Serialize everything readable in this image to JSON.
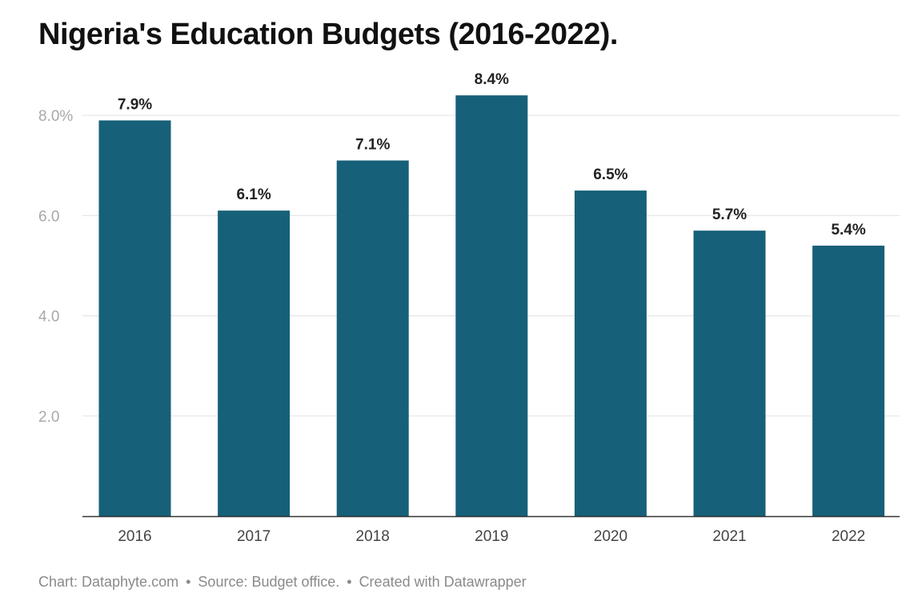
{
  "title": "Nigeria's Education Budgets (2016-2022).",
  "footer": {
    "chart_credit": "Chart: Dataphyte.com",
    "source": "Source: Budget office.",
    "tool": "Created with Datawrapper",
    "separator": "•"
  },
  "colors": {
    "bar": "#176079",
    "grid": "#e6e6e6",
    "axis": "#333333",
    "tick_label": "#a8a8a8",
    "x_label": "#444444",
    "value_label": "#222222"
  },
  "chart_data": {
    "type": "bar",
    "categories": [
      "2016",
      "2017",
      "2018",
      "2019",
      "2020",
      "2021",
      "2022"
    ],
    "values": [
      7.9,
      6.1,
      7.1,
      8.4,
      6.5,
      5.7,
      5.4
    ],
    "value_labels": [
      "7.9%",
      "6.1%",
      "7.1%",
      "8.4%",
      "6.5%",
      "5.7%",
      "5.4%"
    ],
    "title": "Nigeria's Education Budgets (2016-2022).",
    "xlabel": "",
    "ylabel": "",
    "ylim": [
      0,
      8.0
    ],
    "yticks": [
      2.0,
      4.0,
      6.0,
      8.0
    ],
    "ytick_labels": [
      "2.0",
      "4.0",
      "6.0",
      "8.0%"
    ],
    "grid": true,
    "legend": "none"
  }
}
